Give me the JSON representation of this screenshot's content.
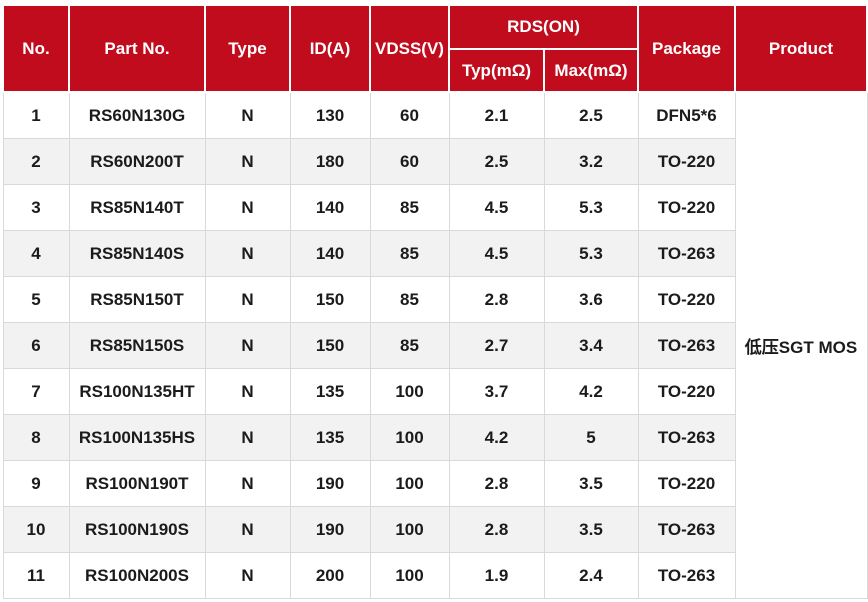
{
  "table": {
    "headers": {
      "no": "No.",
      "part": "Part No.",
      "type": "Type",
      "id": "ID(A)",
      "vdss": "VDSS(V)",
      "rds": "RDS(ON)",
      "typ": "Typ(mΩ)",
      "max": "Max(mΩ)",
      "package": "Package",
      "product": "Product"
    },
    "product_group": "低压SGT MOS",
    "rows": [
      {
        "no": "1",
        "part": "RS60N130G",
        "type": "N",
        "id": "130",
        "vdss": "60",
        "typ": "2.1",
        "max": "2.5",
        "package": "DFN5*6"
      },
      {
        "no": "2",
        "part": "RS60N200T",
        "type": "N",
        "id": "180",
        "vdss": "60",
        "typ": "2.5",
        "max": "3.2",
        "package": "TO-220"
      },
      {
        "no": "3",
        "part": "RS85N140T",
        "type": "N",
        "id": "140",
        "vdss": "85",
        "typ": "4.5",
        "max": "5.3",
        "package": "TO-220"
      },
      {
        "no": "4",
        "part": "RS85N140S",
        "type": "N",
        "id": "140",
        "vdss": "85",
        "typ": "4.5",
        "max": "5.3",
        "package": "TO-263"
      },
      {
        "no": "5",
        "part": "RS85N150T",
        "type": "N",
        "id": "150",
        "vdss": "85",
        "typ": "2.8",
        "max": "3.6",
        "package": "TO-220"
      },
      {
        "no": "6",
        "part": "RS85N150S",
        "type": "N",
        "id": "150",
        "vdss": "85",
        "typ": "2.7",
        "max": "3.4",
        "package": "TO-263"
      },
      {
        "no": "7",
        "part": "RS100N135HT",
        "type": "N",
        "id": "135",
        "vdss": "100",
        "typ": "3.7",
        "max": "4.2",
        "package": "TO-220"
      },
      {
        "no": "8",
        "part": "RS100N135HS",
        "type": "N",
        "id": "135",
        "vdss": "100",
        "typ": "4.2",
        "max": "5",
        "package": "TO-263"
      },
      {
        "no": "9",
        "part": "RS100N190T",
        "type": "N",
        "id": "190",
        "vdss": "100",
        "typ": "2.8",
        "max": "3.5",
        "package": "TO-220"
      },
      {
        "no": "10",
        "part": "RS100N190S",
        "type": "N",
        "id": "190",
        "vdss": "100",
        "typ": "2.8",
        "max": "3.5",
        "package": "TO-263"
      },
      {
        "no": "11",
        "part": "RS100N200S",
        "type": "N",
        "id": "200",
        "vdss": "100",
        "typ": "1.9",
        "max": "2.4",
        "package": "TO-263"
      }
    ]
  },
  "colors": {
    "header_bg": "#c00c1c",
    "header_text": "#ffffff",
    "stripe_bg": "#f2f2f2",
    "row_bg": "#ffffff",
    "border": "#d9d9d9",
    "body_text": "#1b1b1b"
  }
}
